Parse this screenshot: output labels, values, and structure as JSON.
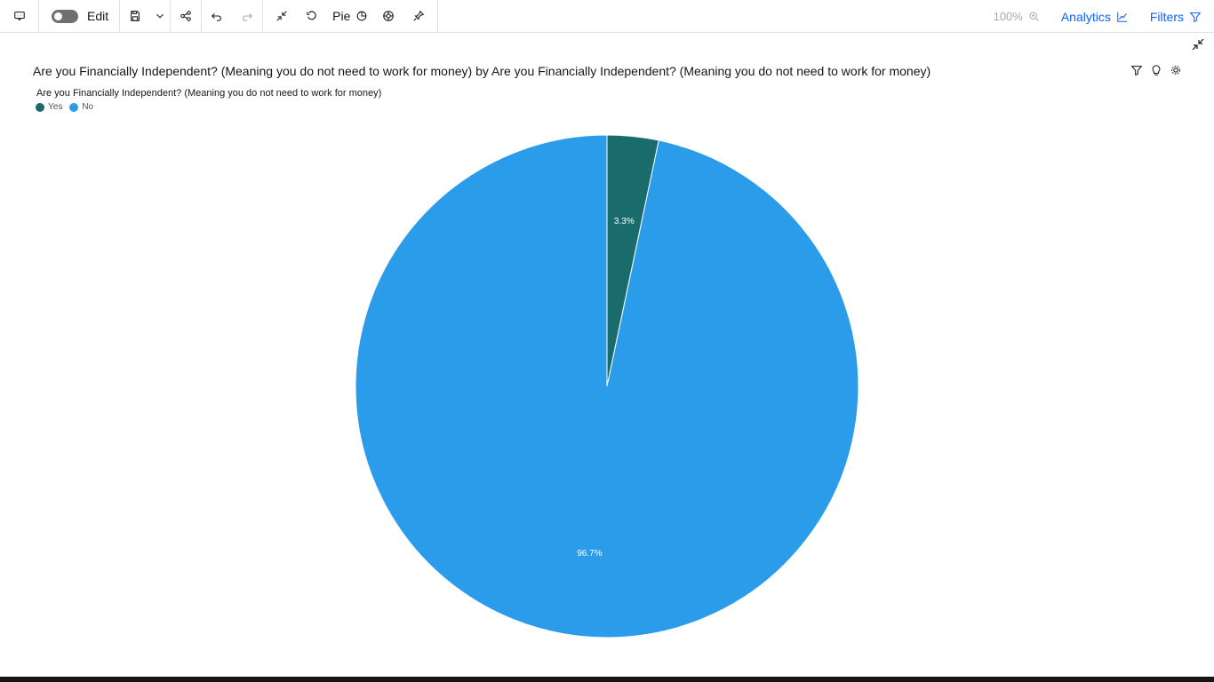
{
  "toolbar": {
    "edit_label": "Edit",
    "chart_type_label": "Pie",
    "zoom_label": "100%",
    "analytics_label": "Analytics",
    "filters_label": "Filters"
  },
  "visualization": {
    "title": "Are you Financially Independent? (Meaning you do not need to work for money) by Are you Financially Independent? (Meaning you do not need to work for money)",
    "legend_title": "Are you Financially Independent? (Meaning you do not need to work for money)"
  },
  "colors": {
    "yes": "#1a6b6b",
    "no": "#2b9ce9",
    "accent": "#0f62fe"
  },
  "chart_data": {
    "type": "pie",
    "title": "Are you Financially Independent? (Meaning you do not need to work for money) by Are you Financially Independent? (Meaning you do not need to work for money)",
    "legend_title": "Are you Financially Independent? (Meaning you do not need to work for money)",
    "legend_position": "top-left",
    "categories": [
      "Yes",
      "No"
    ],
    "values": [
      3.3,
      96.7
    ],
    "labels": [
      "3.3%",
      "96.7%"
    ],
    "colors": [
      "#1a6b6b",
      "#2b9ce9"
    ]
  }
}
